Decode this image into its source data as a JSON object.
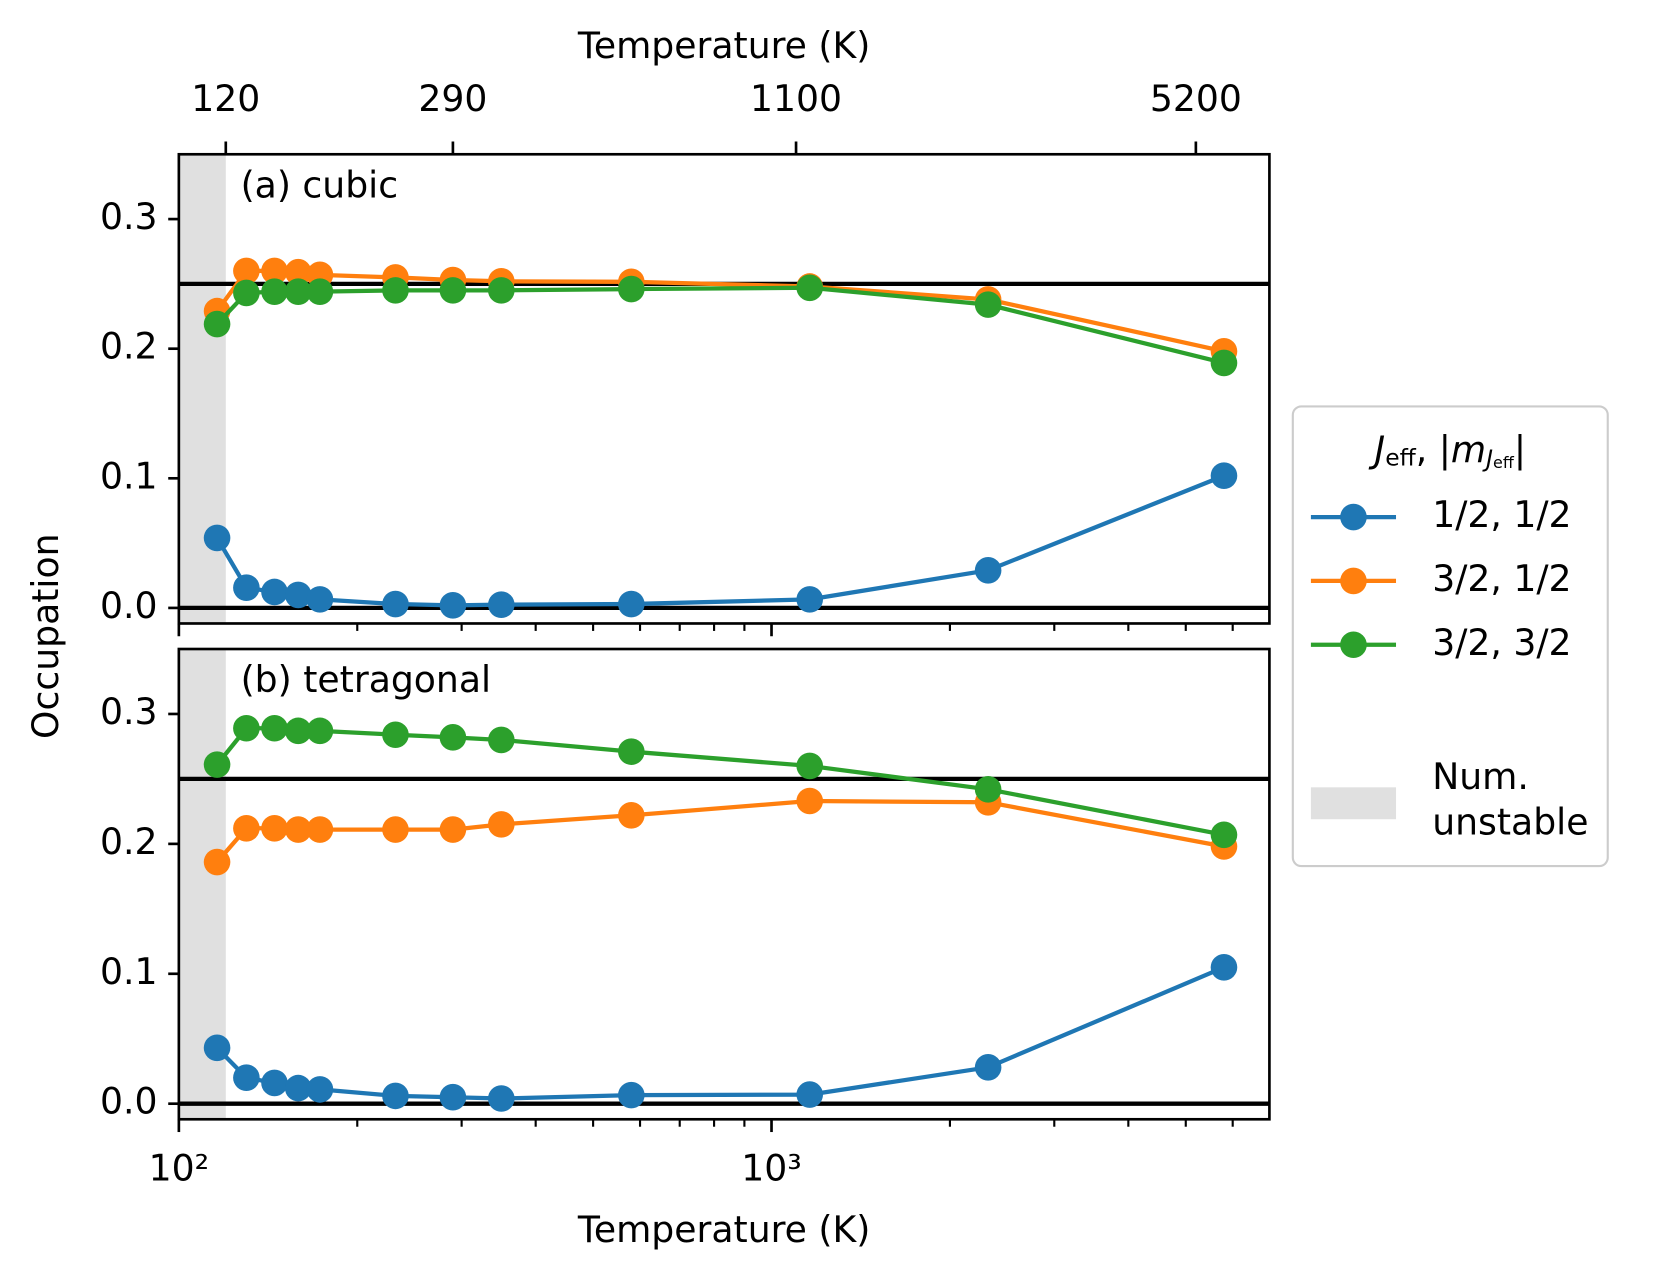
{
  "chart_data": [
    {
      "type": "line",
      "annotation": "(a) cubic",
      "x": [
        116,
        130,
        145,
        159,
        173,
        232,
        290,
        350,
        580,
        1160,
        2320,
        5800
      ],
      "series": [
        {
          "name": "1/2, 1/2",
          "color": "#1f77b4",
          "values": [
            0.054,
            0.0156,
            0.0123,
            0.01,
            0.0066,
            0.003,
            0.002,
            0.0025,
            0.003,
            0.0066,
            0.029,
            0.102
          ]
        },
        {
          "name": "3/2, 1/2",
          "color": "#ff7f0e",
          "values": [
            0.229,
            0.26,
            0.26,
            0.259,
            0.257,
            0.255,
            0.253,
            0.252,
            0.2516,
            0.248,
            0.238,
            0.198
          ]
        },
        {
          "name": "3/2, 3/2",
          "color": "#2ca02c",
          "values": [
            0.219,
            0.243,
            0.244,
            0.244,
            0.244,
            0.245,
            0.245,
            0.245,
            0.246,
            0.247,
            0.234,
            0.189
          ]
        }
      ],
      "hlines": [
        0,
        0.25
      ],
      "shade": {
        "range": [
          100,
          120
        ],
        "color": "#e0e0e0",
        "label": [
          "Num.",
          "unstable"
        ]
      },
      "xlim": [
        100,
        6920
      ],
      "xscale": "log",
      "x2label": "Temperature (K)",
      "x2ticks": [
        120,
        290,
        1100,
        5200
      ],
      "xticks": [
        100,
        1000
      ],
      "xminor_ticks": [
        200,
        300,
        400,
        500,
        600,
        700,
        800,
        900,
        2000,
        3000,
        4000,
        5000,
        6000
      ],
      "ylim": [
        -0.012,
        0.35
      ],
      "yticks": [
        {
          "value": 0,
          "label": "0.0"
        },
        0.1,
        0.2,
        0.3
      ],
      "legend_title_parts": [
        "J",
        "eff",
        ", |",
        "m",
        "J",
        "eff",
        "|"
      ],
      "legend": "outside right"
    },
    {
      "type": "line",
      "annotation": "(b) tetragonal",
      "x": [
        116,
        130,
        145,
        159,
        173,
        232,
        290,
        350,
        580,
        1160,
        2320,
        5800
      ],
      "series": [
        {
          "name": "1/2, 1/2",
          "color": "#1f77b4",
          "values": [
            0.043,
            0.02,
            0.016,
            0.012,
            0.011,
            0.006,
            0.005,
            0.004,
            0.0066,
            0.007,
            0.028,
            0.105
          ]
        },
        {
          "name": "3/2, 1/2",
          "color": "#ff7f0e",
          "values": [
            0.186,
            0.212,
            0.212,
            0.211,
            0.211,
            0.211,
            0.211,
            0.215,
            0.222,
            0.233,
            0.232,
            0.198
          ]
        },
        {
          "name": "3/2, 3/2",
          "color": "#2ca02c",
          "values": [
            0.261,
            0.289,
            0.289,
            0.287,
            0.287,
            0.284,
            0.282,
            0.28,
            0.271,
            0.26,
            0.242,
            0.207
          ]
        }
      ],
      "hlines": [
        0,
        0.25
      ],
      "shade": {
        "range": [
          100,
          120
        ],
        "color": "#e0e0e0"
      },
      "xlim": [
        100,
        6920
      ],
      "xscale": "log",
      "xlabel": "Temperature (K)",
      "xticks": [
        {
          "value": 100,
          "label": "10²"
        },
        {
          "value": 1000,
          "label": "10³"
        }
      ],
      "xminor_ticks": [
        200,
        300,
        400,
        500,
        600,
        700,
        800,
        900,
        2000,
        3000,
        4000,
        5000,
        6000
      ],
      "ylabel": "Occupation",
      "ylim": [
        -0.012,
        0.35
      ],
      "yticks": [
        {
          "value": 0,
          "label": "0.0"
        },
        0.1,
        0.2,
        0.3
      ]
    }
  ]
}
